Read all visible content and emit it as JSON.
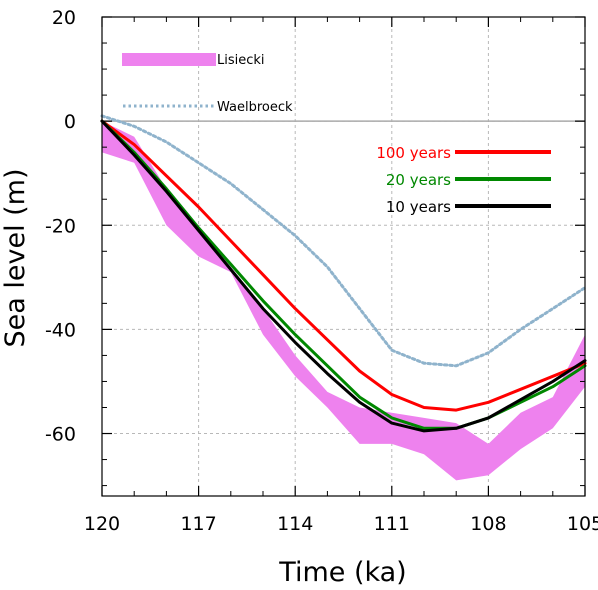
{
  "chart_data": {
    "type": "line",
    "xlabel": "Time (ka)",
    "ylabel": "Sea level (m)",
    "xlim": [
      120,
      105
    ],
    "ylim": [
      -72,
      20
    ],
    "x_axis_reversed": true,
    "grid": true,
    "x_ticks": [
      120,
      117,
      114,
      111,
      108,
      105
    ],
    "x_tick_labels": [
      "120",
      "117",
      "114",
      "111",
      "108",
      "105"
    ],
    "y_ticks": [
      20,
      0,
      -20,
      -40,
      -60
    ],
    "y_tick_labels": [
      "20",
      "0",
      "-20",
      "-40",
      "-60"
    ],
    "zero_line": true,
    "band": {
      "name": "Lisiecki",
      "color": "#ee82ee",
      "x": [
        120,
        119,
        118,
        117,
        116,
        115,
        114,
        113,
        112,
        111,
        110,
        109,
        108,
        107,
        106,
        105
      ],
      "upper": [
        0,
        -3,
        -13,
        -21,
        -28,
        -36,
        -45,
        -52,
        -55,
        -56,
        -57,
        -58,
        -62,
        -56,
        -53,
        -41
      ],
      "lower": [
        -6,
        -8,
        -20,
        -26,
        -29,
        -41,
        -49,
        -55,
        -62,
        -62,
        -64,
        -69,
        -68,
        -63,
        -59,
        -51
      ]
    },
    "series": [
      {
        "name": "Waelbroeck",
        "color": "#8fb3cc",
        "style": "dotted",
        "x": [
          120,
          119,
          118,
          117,
          116,
          115,
          114,
          113,
          112,
          111,
          110,
          109,
          108,
          107,
          106,
          105
        ],
        "values": [
          1,
          -1,
          -4,
          -8,
          -12,
          -17,
          -22,
          -28,
          -36,
          -44,
          -46.5,
          -47,
          -44.5,
          -40,
          -36,
          -32
        ]
      },
      {
        "name": "100 years",
        "color": "#ff0000",
        "style": "solid",
        "x": [
          120,
          119,
          118,
          117,
          116,
          115,
          114,
          113,
          112,
          111,
          110,
          109,
          108,
          107,
          106,
          105
        ],
        "values": [
          0,
          -4.5,
          -10.5,
          -16.5,
          -23,
          -29.5,
          -36,
          -42,
          -48,
          -52.5,
          -55,
          -55.5,
          -54,
          -51.5,
          -49,
          -46.5
        ]
      },
      {
        "name": "20 years",
        "color": "#008800",
        "style": "solid",
        "x": [
          120,
          119,
          118,
          117,
          116,
          115,
          114,
          113,
          112,
          111,
          110,
          109,
          108,
          107,
          106,
          105
        ],
        "values": [
          0,
          -6,
          -13,
          -20.5,
          -27.5,
          -34.5,
          -41,
          -47,
          -53,
          -57,
          -59,
          -59,
          -57,
          -54,
          -51,
          -47
        ]
      },
      {
        "name": "10 years",
        "color": "#000000",
        "style": "solid",
        "x": [
          120,
          119,
          118,
          117,
          116,
          115,
          114,
          113,
          112,
          111,
          110,
          109,
          108,
          107,
          106,
          105
        ],
        "values": [
          0,
          -6.5,
          -13.5,
          -21,
          -28.5,
          -36,
          -42.5,
          -48.5,
          -54,
          -58,
          -59.5,
          -59,
          -57,
          -53.5,
          -50,
          -46
        ]
      }
    ],
    "legend": [
      {
        "label": "Lisiecki",
        "color": "#ee82ee",
        "label_color": "#000000",
        "kind": "band"
      },
      {
        "label": "Waelbroeck",
        "color": "#8fb3cc",
        "label_color": "#000000",
        "kind": "dotted"
      },
      {
        "label": "100 years",
        "color": "#ff0000",
        "label_color": "#ff0000",
        "kind": "line"
      },
      {
        "label": "20 years",
        "color": "#008800",
        "label_color": "#008800",
        "kind": "line"
      },
      {
        "label": "10 years",
        "color": "#000000",
        "label_color": "#000000",
        "kind": "line"
      }
    ]
  }
}
